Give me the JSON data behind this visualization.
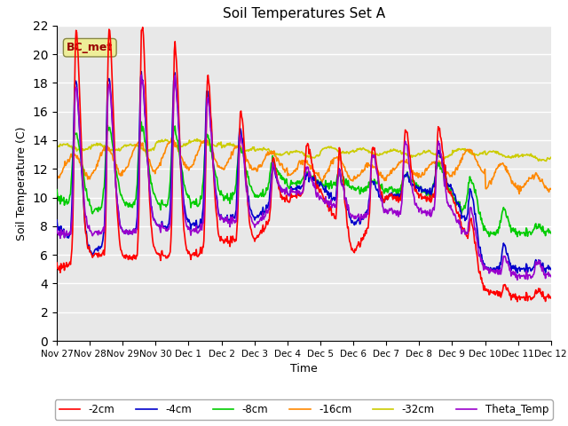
{
  "title": "Soil Temperatures Set A",
  "xlabel": "Time",
  "ylabel": "Soil Temperature (C)",
  "ylim": [
    0,
    22
  ],
  "yticks": [
    0,
    2,
    4,
    6,
    8,
    10,
    12,
    14,
    16,
    18,
    20,
    22
  ],
  "xtick_labels": [
    "Nov 27",
    "Nov 28",
    "Nov 29",
    "Nov 30",
    "Dec 1",
    "Dec 2",
    "Dec 3",
    "Dec 4",
    "Dec 5",
    "Dec 6",
    "Dec 7",
    "Dec 8",
    "Dec 9",
    "Dec 10",
    "Dec 11",
    "Dec 12"
  ],
  "colors": {
    "-2cm": "#ff0000",
    "-4cm": "#0000cc",
    "-8cm": "#00cc00",
    "-16cm": "#ff8800",
    "-32cm": "#cccc00",
    "Theta_Temp": "#9900cc"
  },
  "annotation_text": "BC_met",
  "annotation_color": "#990000",
  "annotation_bg": "#eeee99",
  "plot_bg": "#e8e8e8",
  "grid_color": "#ffffff",
  "linewidth": 1.2
}
